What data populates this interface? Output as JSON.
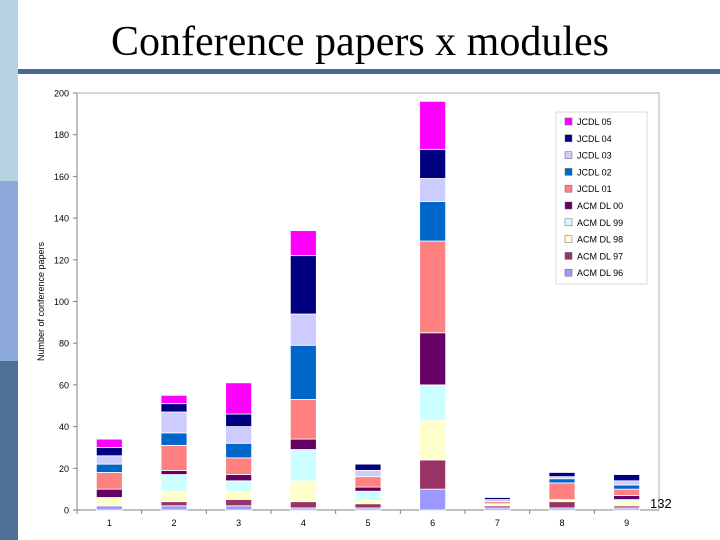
{
  "slide": {
    "title": "Conference papers x modules",
    "page_number": "132"
  },
  "colors": {
    "band_light": "#b7d3e3",
    "band_mid": "#8daadb",
    "band_dark": "#4f7197",
    "rule": "#4a6a92"
  },
  "chart_data": {
    "type": "bar",
    "stacked": true,
    "title": "",
    "xlabel": "",
    "ylabel": "Number of conference papers",
    "ylim": [
      0,
      200
    ],
    "yticks": [
      0,
      20,
      40,
      60,
      80,
      100,
      120,
      140,
      160,
      180,
      200
    ],
    "grid": false,
    "legend_position": "top-right",
    "categories": [
      "1",
      "2",
      "3",
      "4",
      "5",
      "6",
      "7",
      "8",
      "9"
    ],
    "series": [
      {
        "name": "ACM DL 96",
        "color": "#9999ff",
        "values": [
          2,
          2,
          2,
          1,
          1,
          10,
          1,
          1,
          1
        ]
      },
      {
        "name": "ACM DL 97",
        "color": "#993366",
        "values": [
          0,
          2,
          3,
          3,
          2,
          14,
          1,
          3,
          1
        ]
      },
      {
        "name": "ACM DL 98",
        "color": "#ffffcc",
        "values": [
          4,
          5,
          4,
          10,
          2,
          19,
          1,
          1,
          2
        ]
      },
      {
        "name": "ACM DL 99",
        "color": "#ccffff",
        "values": [
          0,
          8,
          5,
          15,
          4,
          17,
          0,
          0,
          1
        ]
      },
      {
        "name": "ACM DL 00",
        "color": "#660066",
        "values": [
          4,
          2,
          3,
          5,
          2,
          25,
          0,
          0,
          2
        ]
      },
      {
        "name": "JCDL 01",
        "color": "#ff8080",
        "values": [
          8,
          12,
          8,
          19,
          5,
          44,
          1,
          8,
          3
        ]
      },
      {
        "name": "JCDL 02",
        "color": "#0066cc",
        "values": [
          4,
          6,
          7,
          26,
          0,
          19,
          0,
          2,
          2
        ]
      },
      {
        "name": "JCDL 03",
        "color": "#ccccff",
        "values": [
          4,
          10,
          8,
          15,
          3,
          11,
          1,
          1,
          2
        ]
      },
      {
        "name": "JCDL 04",
        "color": "#000080",
        "values": [
          4,
          4,
          6,
          28,
          3,
          14,
          1,
          2,
          3
        ]
      },
      {
        "name": "JCDL 05",
        "color": "#ff00ff",
        "values": [
          4,
          4,
          15,
          12,
          0,
          23,
          0,
          0,
          0
        ]
      }
    ]
  }
}
